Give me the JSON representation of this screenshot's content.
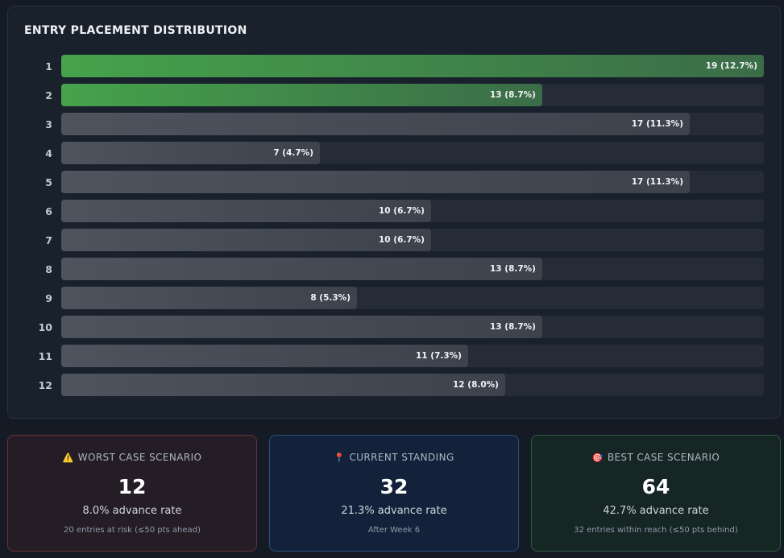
{
  "chart_data": {
    "type": "bar",
    "orientation": "horizontal",
    "title": "ENTRY PLACEMENT DISTRIBUTION",
    "categories": [
      "1",
      "2",
      "3",
      "4",
      "5",
      "6",
      "7",
      "8",
      "9",
      "10",
      "11",
      "12"
    ],
    "values": [
      19,
      13,
      17,
      7,
      17,
      10,
      10,
      13,
      8,
      13,
      11,
      12
    ],
    "labels": [
      "19 (12.7%)",
      "13 (8.7%)",
      "17 (11.3%)",
      "7 (4.7%)",
      "17 (11.3%)",
      "10 (6.7%)",
      "10 (6.7%)",
      "13 (8.7%)",
      "8 (5.3%)",
      "13 (8.7%)",
      "11 (7.3%)",
      "12 (8.0%)"
    ],
    "highlighted": [
      "1",
      "2"
    ],
    "xlim": [
      0,
      19
    ],
    "colors": {
      "highlight": "#45a34b",
      "default": "#4e535d",
      "track": "#252c38"
    }
  },
  "stats": {
    "worst": {
      "icon": "⚠️",
      "title": "WORST CASE SCENARIO",
      "value": "12",
      "rate": "8.0% advance rate",
      "note": "20 entries at risk (≤50 pts ahead)"
    },
    "current": {
      "icon": "📍",
      "title": "CURRENT STANDING",
      "value": "32",
      "rate": "21.3% advance rate",
      "note": "After Week 6"
    },
    "best": {
      "icon": "🎯",
      "title": "BEST CASE SCENARIO",
      "value": "64",
      "rate": "42.7% advance rate",
      "note": "32 entries within reach (≤50 pts behind)"
    }
  }
}
